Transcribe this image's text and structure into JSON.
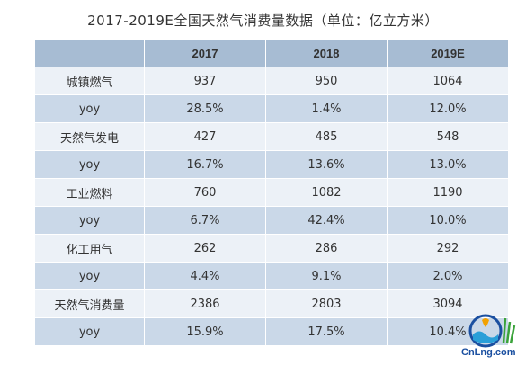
{
  "title": "2017-2019E全国天然气消费量数据（单位：亿立方米）",
  "chart_data": {
    "type": "table",
    "columns": [
      "",
      "2017",
      "2018",
      "2019E"
    ],
    "rows": [
      {
        "label": "城镇燃气",
        "values": [
          "937",
          "950",
          "1064"
        ]
      },
      {
        "label": "yoy",
        "values": [
          "28.5%",
          "1.4%",
          "12.0%"
        ]
      },
      {
        "label": "天然气发电",
        "values": [
          "427",
          "485",
          "548"
        ]
      },
      {
        "label": "yoy",
        "values": [
          "16.7%",
          "13.6%",
          "13.0%"
        ]
      },
      {
        "label": "工业燃料",
        "values": [
          "760",
          "1082",
          "1190"
        ]
      },
      {
        "label": "yoy",
        "values": [
          "6.7%",
          "42.4%",
          "10.0%"
        ]
      },
      {
        "label": "化工用气",
        "values": [
          "262",
          "286",
          "292"
        ]
      },
      {
        "label": "yoy",
        "values": [
          "4.4%",
          "9.1%",
          "2.0%"
        ]
      },
      {
        "label": "天然气消费量",
        "values": [
          "2386",
          "2803",
          "3094"
        ]
      },
      {
        "label": "yoy",
        "values": [
          "15.9%",
          "17.5%",
          "10.4%"
        ]
      }
    ]
  },
  "watermark": {
    "text": "CnLng.com",
    "text_color": "#1a4fa0"
  },
  "colors": {
    "header": "#a7bcd3",
    "row_light": "#ecf1f7",
    "row_dark": "#cad8e8"
  }
}
